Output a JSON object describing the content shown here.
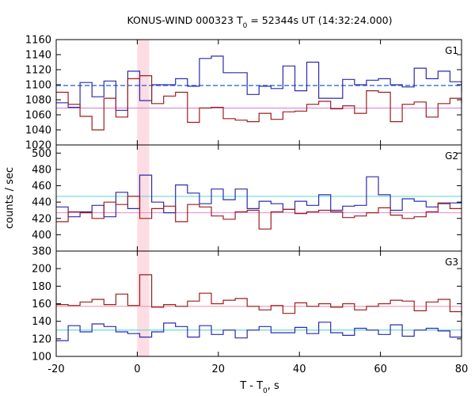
{
  "chart_data": {
    "type": "line",
    "title": {
      "main": "KONUS-WIND 000323 T",
      "sub": "0",
      "rest": " = 52344s UT (14:32:24.000)"
    },
    "xlabel": {
      "main": "T - T",
      "sub": "0",
      "rest": ", s"
    },
    "ylabel": "counts / sec",
    "xlim": [
      -20,
      80
    ],
    "xticks": [
      -20,
      0,
      20,
      40,
      60,
      80
    ],
    "highlight_x": [
      0,
      2.944
    ],
    "bin_edges": [
      -20,
      -17.056,
      -14.112,
      -11.168,
      -8.224,
      -5.28,
      -2.336,
      0.608,
      3.552,
      6.496,
      9.44,
      12.384,
      15.328,
      18.272,
      21.216,
      24.16,
      27.104,
      30.048,
      32.992,
      35.936,
      38.88,
      41.824,
      44.768,
      47.712,
      50.656,
      53.6,
      56.544,
      59.488,
      62.432,
      65.376,
      68.32,
      71.264,
      74.208,
      77.152,
      80.096
    ],
    "panels": [
      {
        "label": "G1",
        "ylim": [
          1020,
          1160
        ],
        "yticks": [
          1020,
          1040,
          1060,
          1080,
          1100,
          1120,
          1140,
          1160
        ],
        "series": [
          {
            "color": "#2b2bb0",
            "values": [
              1076,
              1070,
              1103,
              1084,
              1105,
              1066,
              1118,
              1079,
              1100,
              1100,
              1108,
              1098,
              1135,
              1138,
              1116,
              1116,
              1087,
              1098,
              1095,
              1125,
              1092,
              1130,
              1082,
              1082,
              1107,
              1100,
              1106,
              1108,
              1100,
              1097,
              1122,
              1108,
              1118,
              1104,
              1090
            ],
            "background": 1099,
            "background_color": "#2b6be6",
            "background_dash": true
          },
          {
            "color": "#9e1d1d",
            "values": [
              1090,
              1074,
              1058,
              1040,
              1082,
              1057,
              1108,
              1112,
              1075,
              1085,
              1090,
              1050,
              1069,
              1070,
              1055,
              1053,
              1051,
              1062,
              1054,
              1064,
              1065,
              1074,
              1078,
              1068,
              1072,
              1062,
              1092,
              1090,
              1051,
              1074,
              1077,
              1057,
              1075,
              1082,
              1075
            ],
            "background": 1069,
            "background_color": "#d58ad5"
          }
        ]
      },
      {
        "label": "G2",
        "ylim": [
          380,
          510
        ],
        "yticks": [
          380,
          400,
          420,
          440,
          460,
          480,
          500
        ],
        "series": [
          {
            "color": "#2b2bb0",
            "values": [
              434,
              422,
              428,
              436,
              422,
              452,
              432,
              473,
              440,
              427,
              461,
              451,
              438,
              456,
              443,
              456,
              432,
              441,
              438,
              431,
              441,
              436,
              449,
              430,
              435,
              436,
              471,
              449,
              430,
              444,
              441,
              434,
              438,
              439,
              458
            ],
            "background": 447,
            "background_color": "#6ed7d7"
          },
          {
            "color": "#9e1d1d",
            "values": [
              416,
              428,
              427,
              420,
              440,
              437,
              447,
              420,
              432,
              435,
              416,
              437,
              434,
              423,
              419,
              428,
              430,
              407,
              428,
              431,
              426,
              428,
              430,
              428,
              421,
              423,
              427,
              433,
              424,
              420,
              422,
              428,
              439,
              432,
              432
            ],
            "background": 427,
            "background_color": "#e39ad9"
          }
        ]
      },
      {
        "label": "G3",
        "ylim": [
          100,
          220
        ],
        "yticks": [
          100,
          120,
          140,
          160,
          180,
          200
        ],
        "series": [
          {
            "color": "#2b2bb0",
            "values": [
              118,
              135,
              128,
              137,
              134,
              128,
              126,
              122,
              128,
              138,
              134,
              122,
              135,
              125,
              130,
              121,
              130,
              134,
              127,
              127,
              133,
              126,
              139,
              127,
              124,
              132,
              130,
              125,
              136,
              123,
              130,
              132,
              129,
              122,
              133
            ],
            "background": 130,
            "background_color": "#6ed7d7"
          },
          {
            "color": "#9e1d1d",
            "values": [
              159,
              158,
              162,
              165,
              159,
              171,
              158,
              193,
              156,
              159,
              157,
              163,
              172,
              160,
              164,
              166,
              157,
              153,
              158,
              149,
              161,
              157,
              160,
              156,
              160,
              153,
              157,
              160,
              164,
              163,
              152,
              162,
              165,
              151,
              146
            ],
            "background": 157,
            "background_color": "#ef9ab0"
          }
        ]
      }
    ]
  }
}
